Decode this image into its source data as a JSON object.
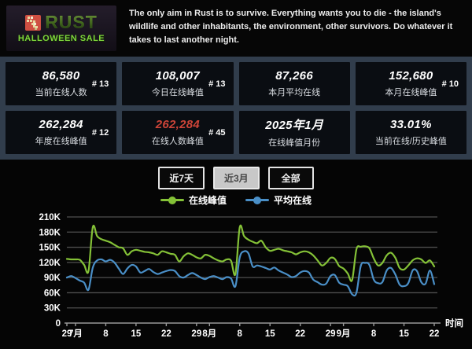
{
  "header": {
    "logo": {
      "title": "RUST",
      "subtitle": "HALLOWEEN SALE"
    },
    "description": "The only aim in Rust is to survive. Everything wants you to die - the island's wildlife and other inhabitants, the environment, other survivors. Do whatever it takes to last another night."
  },
  "stats": {
    "cards": [
      {
        "value": "86,580",
        "label": "当前在线人数",
        "rank": "# 13",
        "value_color": "white"
      },
      {
        "value": "108,007",
        "label": "今日在线峰值",
        "rank": "# 13",
        "value_color": "white"
      },
      {
        "value": "87,266",
        "label": "本月平均在线",
        "rank": "",
        "value_color": "white"
      },
      {
        "value": "152,680",
        "label": "本月在线峰值",
        "rank": "# 10",
        "value_color": "white"
      },
      {
        "value": "262,284",
        "label": "年度在线峰值",
        "rank": "# 12",
        "value_color": "white"
      },
      {
        "value": "262,284",
        "label": "在线人数峰值",
        "rank": "# 45",
        "value_color": "red"
      },
      {
        "value": "2025年1月",
        "label": "在线峰值月份",
        "rank": "",
        "value_color": "white"
      },
      {
        "value": "33.01%",
        "label": "当前在线/历史峰值",
        "rank": "",
        "value_color": "white"
      }
    ]
  },
  "controls": {
    "buttons": [
      {
        "label": "近7天",
        "active": false
      },
      {
        "label": "近3月",
        "active": true
      },
      {
        "label": "全部",
        "active": false
      }
    ]
  },
  "colors": {
    "peak_green": "#84c137",
    "avg_blue": "#4a8fc7",
    "red_value": "#cd4438",
    "section_bg": "#313d4c",
    "card_bg": "#0a0d12",
    "grid": "#4f4f4f",
    "axis": "#999999"
  },
  "chart_data": {
    "type": "line",
    "title": "",
    "xlabel": "时间",
    "ylabel": "",
    "unit_note": "values in thousands of concurrent players, daily from Jun 29 to Sep 22",
    "ylim": [
      0,
      210000
    ],
    "grid": true,
    "legend_position": "top",
    "y_ticks": [
      "0",
      "30K",
      "60K",
      "90K",
      "120K",
      "150K",
      "180K",
      "210K"
    ],
    "x_ticks": [
      {
        "day": 0,
        "label": "29"
      },
      {
        "day": 2,
        "label": "7月"
      },
      {
        "day": 9,
        "label": "8"
      },
      {
        "day": 16,
        "label": "15"
      },
      {
        "day": 23,
        "label": "22"
      },
      {
        "day": 30,
        "label": "29"
      },
      {
        "day": 33,
        "label": "8月"
      },
      {
        "day": 40,
        "label": "8"
      },
      {
        "day": 47,
        "label": "15"
      },
      {
        "day": 54,
        "label": "22"
      },
      {
        "day": 61,
        "label": "29"
      },
      {
        "day": 64,
        "label": "9月"
      },
      {
        "day": 71,
        "label": "8"
      },
      {
        "day": 78,
        "label": "15"
      },
      {
        "day": 85,
        "label": "22"
      }
    ],
    "series": [
      {
        "name": "在线峰值",
        "color": "#84c137",
        "values_k": [
          127,
          126,
          126,
          125,
          115,
          103,
          190,
          172,
          166,
          163,
          160,
          155,
          150,
          148,
          135,
          142,
          145,
          143,
          141,
          140,
          138,
          135,
          142,
          140,
          137,
          135,
          122,
          132,
          138,
          135,
          130,
          128,
          135,
          133,
          128,
          124,
          122,
          126,
          123,
          97,
          190,
          172,
          165,
          161,
          158,
          163,
          150,
          143,
          145,
          147,
          144,
          142,
          140,
          136,
          140,
          142,
          140,
          134,
          124,
          114,
          119,
          129,
          127,
          113,
          108,
          98,
          85,
          146,
          151,
          152,
          148,
          128,
          114,
          119,
          134,
          139,
          129,
          109,
          106,
          114,
          124,
          128,
          126,
          119,
          124,
          112
        ]
      },
      {
        "name": "平均在线",
        "color": "#4a8fc7",
        "values_k": [
          90,
          93,
          89,
          84,
          80,
          66,
          110,
          124,
          126,
          122,
          125,
          120,
          108,
          97,
          108,
          115,
          112,
          100,
          103,
          107,
          101,
          97,
          100,
          103,
          105,
          103,
          93,
          90,
          95,
          99,
          95,
          90,
          87,
          91,
          93,
          90,
          87,
          91,
          88,
          73,
          130,
          142,
          138,
          112,
          114,
          112,
          109,
          106,
          110,
          104,
          100,
          96,
          91,
          93,
          100,
          103,
          100,
          86,
          81,
          76,
          78,
          93,
          95,
          80,
          76,
          73,
          57,
          60,
          113,
          119,
          115,
          86,
          79,
          81,
          104,
          109,
          96,
          76,
          73,
          79,
          104,
          103,
          81,
          78,
          104,
          77
        ]
      }
    ]
  }
}
